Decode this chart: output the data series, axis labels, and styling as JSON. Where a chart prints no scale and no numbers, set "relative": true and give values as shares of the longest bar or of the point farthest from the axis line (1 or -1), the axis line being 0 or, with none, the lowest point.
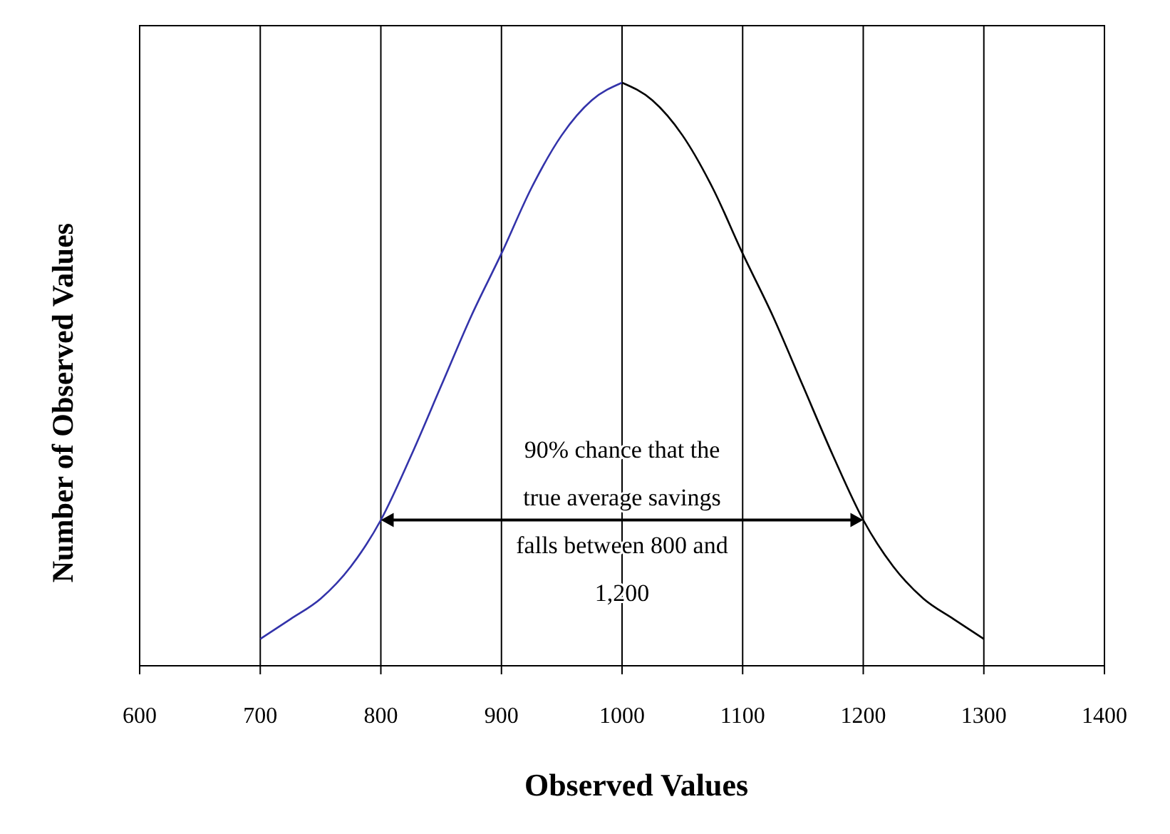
{
  "chart_data": {
    "type": "line",
    "relative": true,
    "xlabel": "Observed Values",
    "ylabel": "Number of Observed Values",
    "xlim": [
      600,
      1400
    ],
    "xticks": [
      600,
      700,
      800,
      900,
      1000,
      1100,
      1200,
      1300,
      1400
    ],
    "grid": "x",
    "line_style": "solid",
    "series": [
      {
        "color": "#3333aa",
        "x": [
          700,
          725,
          750,
          775,
          800,
          825,
          850,
          875,
          900,
          925,
          950,
          975,
          1000
        ],
        "values": [
          0.046,
          0.08,
          0.115,
          0.17,
          0.25,
          0.36,
          0.48,
          0.6,
          0.707,
          0.82,
          0.91,
          0.97,
          1.0
        ]
      },
      {
        "color": "#000000",
        "x": [
          1000,
          1025,
          1050,
          1075,
          1100,
          1125,
          1150,
          1175,
          1200,
          1225,
          1250,
          1275,
          1300
        ],
        "values": [
          1.0,
          0.97,
          0.91,
          0.82,
          0.707,
          0.6,
          0.48,
          0.36,
          0.25,
          0.17,
          0.115,
          0.08,
          0.046
        ]
      }
    ],
    "annotations": [
      "90% chance that the true average savings falls between 800 and 1,200"
    ]
  }
}
